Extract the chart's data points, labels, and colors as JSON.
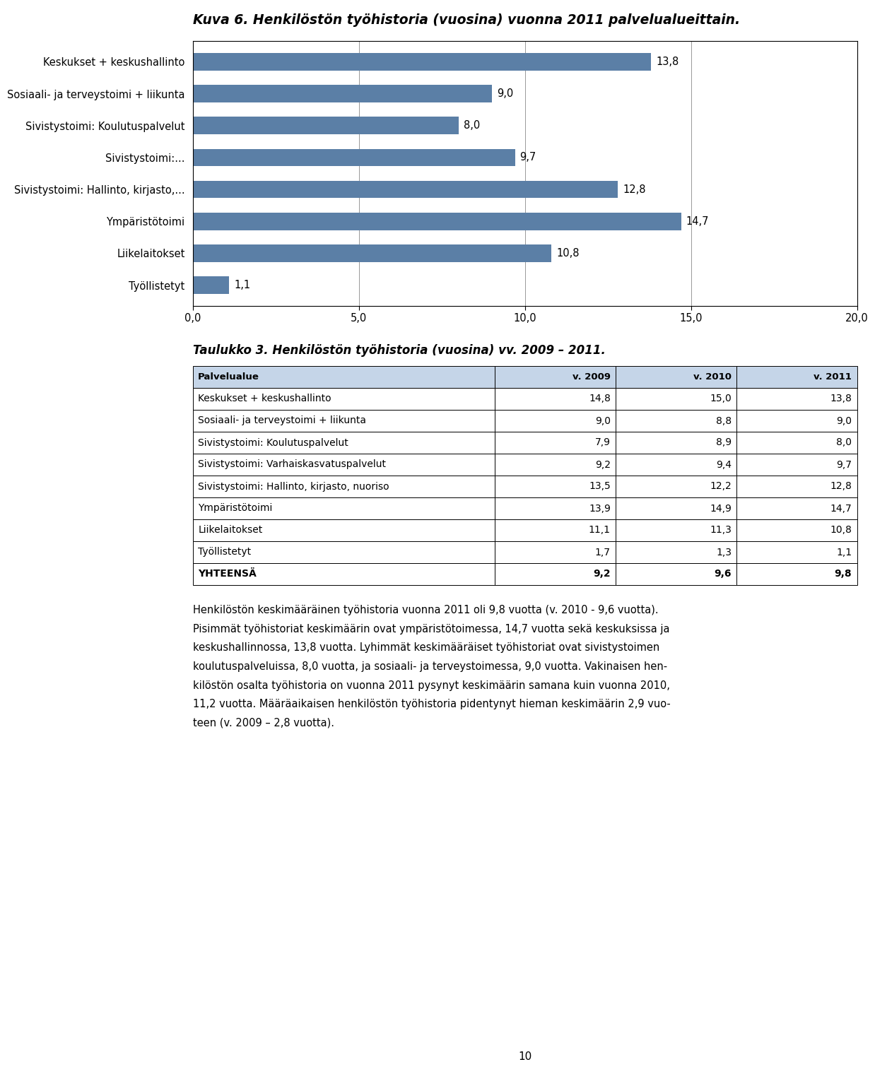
{
  "title": "Kuva 6. Henkilöstön työhistoria (vuosina) vuonna 2011 palvelualueittain.",
  "bar_categories": [
    "Keskukset + keskushallinto",
    "Sosiaali- ja terveystoimi + liikunta",
    "Sivistystoimi: Koulutuspalvelut",
    "Sivistystoimi:...",
    "Sivistystoimi: Hallinto, kirjasto,...",
    "Ympäristötoimi",
    "Liikelaitokset",
    "Työllistetyt"
  ],
  "bar_values": [
    13.8,
    9.0,
    8.0,
    9.7,
    12.8,
    14.7,
    10.8,
    1.1
  ],
  "bar_color": "#5B7FA6",
  "xlim": [
    0,
    20
  ],
  "xticks": [
    0.0,
    5.0,
    10.0,
    15.0,
    20.0
  ],
  "xtick_labels": [
    "0,0",
    "5,0",
    "10,0",
    "15,0",
    "20,0"
  ],
  "table_title": "Taulukko 3. Henkilöstön työhistoria (vuosina) vv. 2009 – 2011.",
  "table_col_headers": [
    "Palvelualue",
    "v. 2009",
    "v. 2010",
    "v. 2011"
  ],
  "table_rows": [
    [
      "Keskukset + keskushallinto",
      "14,8",
      "15,0",
      "13,8"
    ],
    [
      "Sosiaali- ja terveystoimi + liikunta",
      "9,0",
      "8,8",
      "9,0"
    ],
    [
      "Sivistystoimi: Koulutuspalvelut",
      "7,9",
      "8,9",
      "8,0"
    ],
    [
      "Sivistystoimi: Varhaiskasvatuspalvelut",
      "9,2",
      "9,4",
      "9,7"
    ],
    [
      "Sivistystoimi: Hallinto, kirjasto, nuoriso",
      "13,5",
      "12,2",
      "12,8"
    ],
    [
      "Ympäristötoimi",
      "13,9",
      "14,9",
      "14,7"
    ],
    [
      "Liikelaitokset",
      "11,1",
      "11,3",
      "10,8"
    ],
    [
      "Työllistetyt",
      "1,7",
      "1,3",
      "1,1"
    ],
    [
      "YHTEENSÄ",
      "9,2",
      "9,6",
      "9,8"
    ]
  ],
  "paragraph_lines": [
    "Henkilöstön keskimääräinen työhistoria vuonna 2011 oli 9,8 vuotta (v. 2010 - 9,6 vuotta).",
    "Pisimmät työhistoriat keskimäärin ovat ympäristötoimessa, 14,7 vuotta sekä keskuksissa ja",
    "keskushallinnossa, 13,8 vuotta. Lyhimmät keskimääräiset työhistoriat ovat sivistystoimen",
    "koulutuspalveluissa, 8,0 vuotta, ja sosiaali- ja terveystoimessa, 9,0 vuotta. Vakinaisen hen-",
    "kilöstön osalta työhistoria on vuonna 2011 pysynyt keskimäärin samana kuin vuonna 2010,",
    "11,2 vuotta. Määräaikaisen henkilöstön työhistoria pidentynyt hieman keskimäärin 2,9 vuo-",
    "teen (v. 2009 – 2,8 vuotta)."
  ],
  "page_number": "10",
  "header_bg": "#C5D5E8",
  "white": "#FFFFFF"
}
